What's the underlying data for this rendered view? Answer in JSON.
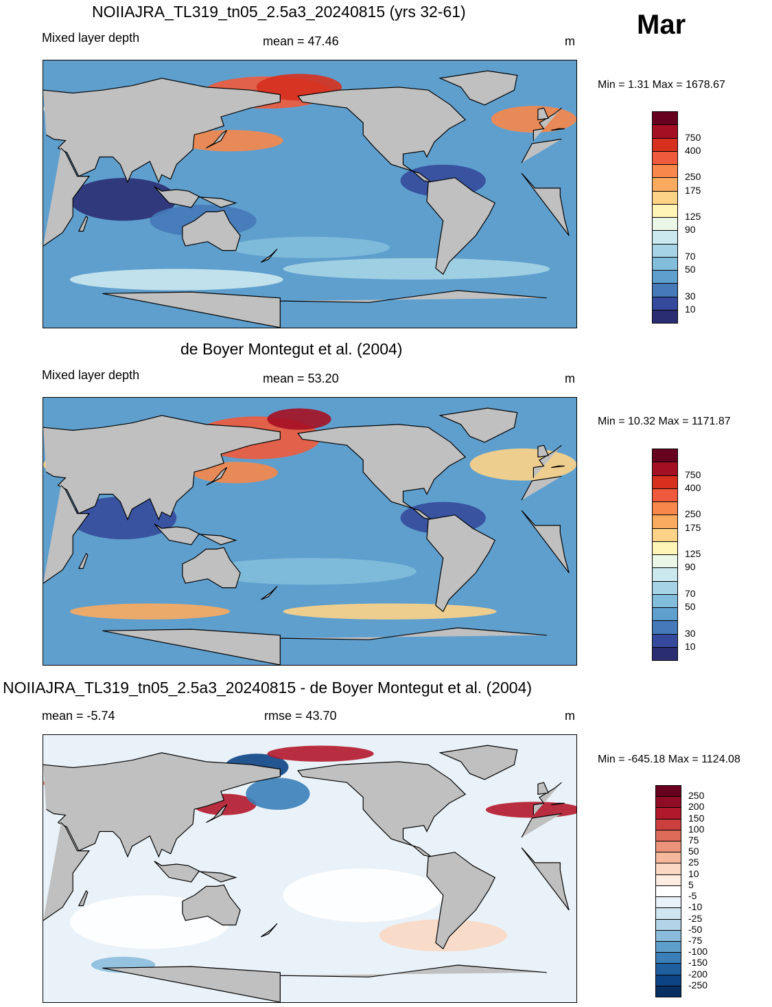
{
  "month": "Mar",
  "panels": [
    {
      "title": "NOIIAJRA_TL319_tn05_2.5a3_20240815 (yrs 32-61)",
      "left_label": "Mixed layer depth",
      "center_label": "mean =  47.46",
      "unit": "m",
      "minmax": "Min =   1.31 Max = 1678.67",
      "colorbar_id": "mld"
    },
    {
      "title": "de Boyer Montegut et al. (2004)",
      "left_label": "Mixed layer depth",
      "center_label": "mean =  53.20",
      "unit": "m",
      "minmax": "Min =  10.32 Max = 1171.87",
      "colorbar_id": "mld"
    },
    {
      "title": "NOIIAJRA_TL319_tn05_2.5a3_20240815 - de Boyer Montegut et al. (2004)",
      "left_label": "mean =  -5.74",
      "center_label": "rmse =  43.70",
      "unit": "m",
      "minmax": "Min = -645.18 Max = 1124.08",
      "colorbar_id": "diff"
    }
  ],
  "colorbars": {
    "mld": {
      "labels": [
        "750",
        "400",
        "250",
        "175",
        "125",
        "90",
        "70",
        "50",
        "30",
        "10"
      ],
      "colors": [
        "#67001f",
        "#a50f24",
        "#d7301f",
        "#ef5a3c",
        "#f7874a",
        "#fbab5f",
        "#fdd387",
        "#fef5b6",
        "#eaf6e6",
        "#cce8ef",
        "#a6d4e6",
        "#82bedb",
        "#5f9fce",
        "#4579b8",
        "#354a9c",
        "#2b2d73"
      ]
    },
    "diff": {
      "labels": [
        "250",
        "200",
        "150",
        "100",
        "75",
        "50",
        "25",
        "10",
        "5",
        "-5",
        "-10",
        "-25",
        "-50",
        "-75",
        "-100",
        "-150",
        "-200",
        "-250"
      ],
      "colors": [
        "#67001f",
        "#8e0d25",
        "#b2182b",
        "#cb3f3f",
        "#dd6b5a",
        "#ec947b",
        "#f5b89d",
        "#fbd8c3",
        "#fdece2",
        "#ffffff",
        "#e9f2f8",
        "#d1e5f0",
        "#b3d4e8",
        "#8bbcdb",
        "#5e9ecb",
        "#3a7fb8",
        "#1f5fa0",
        "#0d4485",
        "#053061"
      ]
    }
  },
  "legend_semantics": {
    "ocean_mld_panels": "blue = shallow mixed layer, red = deep mixed layer",
    "difference_panel": "red = model deeper than observations, blue = model shallower",
    "land_color": "#c0c0c0",
    "missing_color": "#c0c0c0"
  }
}
